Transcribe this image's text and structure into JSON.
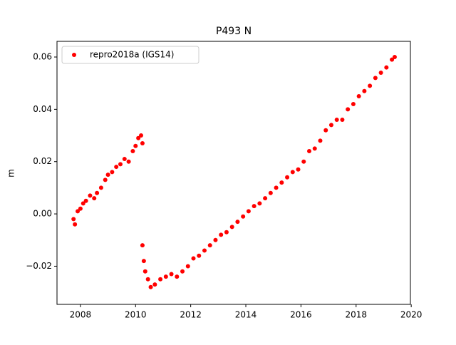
{
  "chart_data": {
    "type": "scatter",
    "title": "P493 N",
    "y_label": "m",
    "x": [
      2007.75,
      2007.8,
      2007.9,
      2008.0,
      2008.1,
      2008.2,
      2008.35,
      2008.5,
      2008.6,
      2008.75,
      2008.9,
      2009.0,
      2009.15,
      2009.3,
      2009.45,
      2009.6,
      2009.75,
      2009.9,
      2010.0,
      2010.1,
      2010.2,
      2010.25,
      2010.25,
      2010.3,
      2010.35,
      2010.45,
      2010.55,
      2010.7,
      2010.9,
      2011.1,
      2011.3,
      2011.5,
      2011.7,
      2011.9,
      2012.1,
      2012.3,
      2012.5,
      2012.7,
      2012.9,
      2013.1,
      2013.3,
      2013.5,
      2013.7,
      2013.9,
      2014.1,
      2014.3,
      2014.5,
      2014.7,
      2014.9,
      2015.1,
      2015.3,
      2015.5,
      2015.7,
      2015.9,
      2016.1,
      2016.3,
      2016.5,
      2016.7,
      2016.9,
      2017.1,
      2017.3,
      2017.5,
      2017.7,
      2017.9,
      2018.1,
      2018.3,
      2018.5,
      2018.7,
      2018.9,
      2019.1,
      2019.3,
      2019.4
    ],
    "series": [
      {
        "name": "repro2018a (IGS14)",
        "color": "#ff0000",
        "values": [
          -0.002,
          -0.004,
          0.001,
          0.002,
          0.004,
          0.005,
          0.007,
          0.006,
          0.008,
          0.01,
          0.013,
          0.015,
          0.016,
          0.018,
          0.019,
          0.021,
          0.02,
          0.024,
          0.026,
          0.029,
          0.03,
          0.027,
          -0.012,
          -0.018,
          -0.022,
          -0.025,
          -0.028,
          -0.027,
          -0.025,
          -0.024,
          -0.023,
          -0.024,
          -0.022,
          -0.02,
          -0.017,
          -0.016,
          -0.014,
          -0.012,
          -0.01,
          -0.008,
          -0.007,
          -0.005,
          -0.003,
          -0.001,
          0.001,
          0.003,
          0.004,
          0.006,
          0.008,
          0.01,
          0.012,
          0.014,
          0.016,
          0.017,
          0.02,
          0.024,
          0.025,
          0.028,
          0.032,
          0.034,
          0.036,
          0.036,
          0.04,
          0.042,
          0.045,
          0.047,
          0.049,
          0.052,
          0.054,
          0.056,
          0.059,
          0.06
        ]
      }
    ],
    "xlim": [
      2007.15,
      2019.97
    ],
    "xticks": [
      2008,
      2010,
      2012,
      2014,
      2016,
      2018,
      2020
    ],
    "ylim": [
      -0.0346,
      0.066
    ],
    "yticks": [
      {
        "value": -0.02,
        "label": "−0.02"
      },
      {
        "value": 0,
        "label": "0.00"
      },
      0.02,
      0.04,
      0.06
    ],
    "legend": "upper left"
  }
}
